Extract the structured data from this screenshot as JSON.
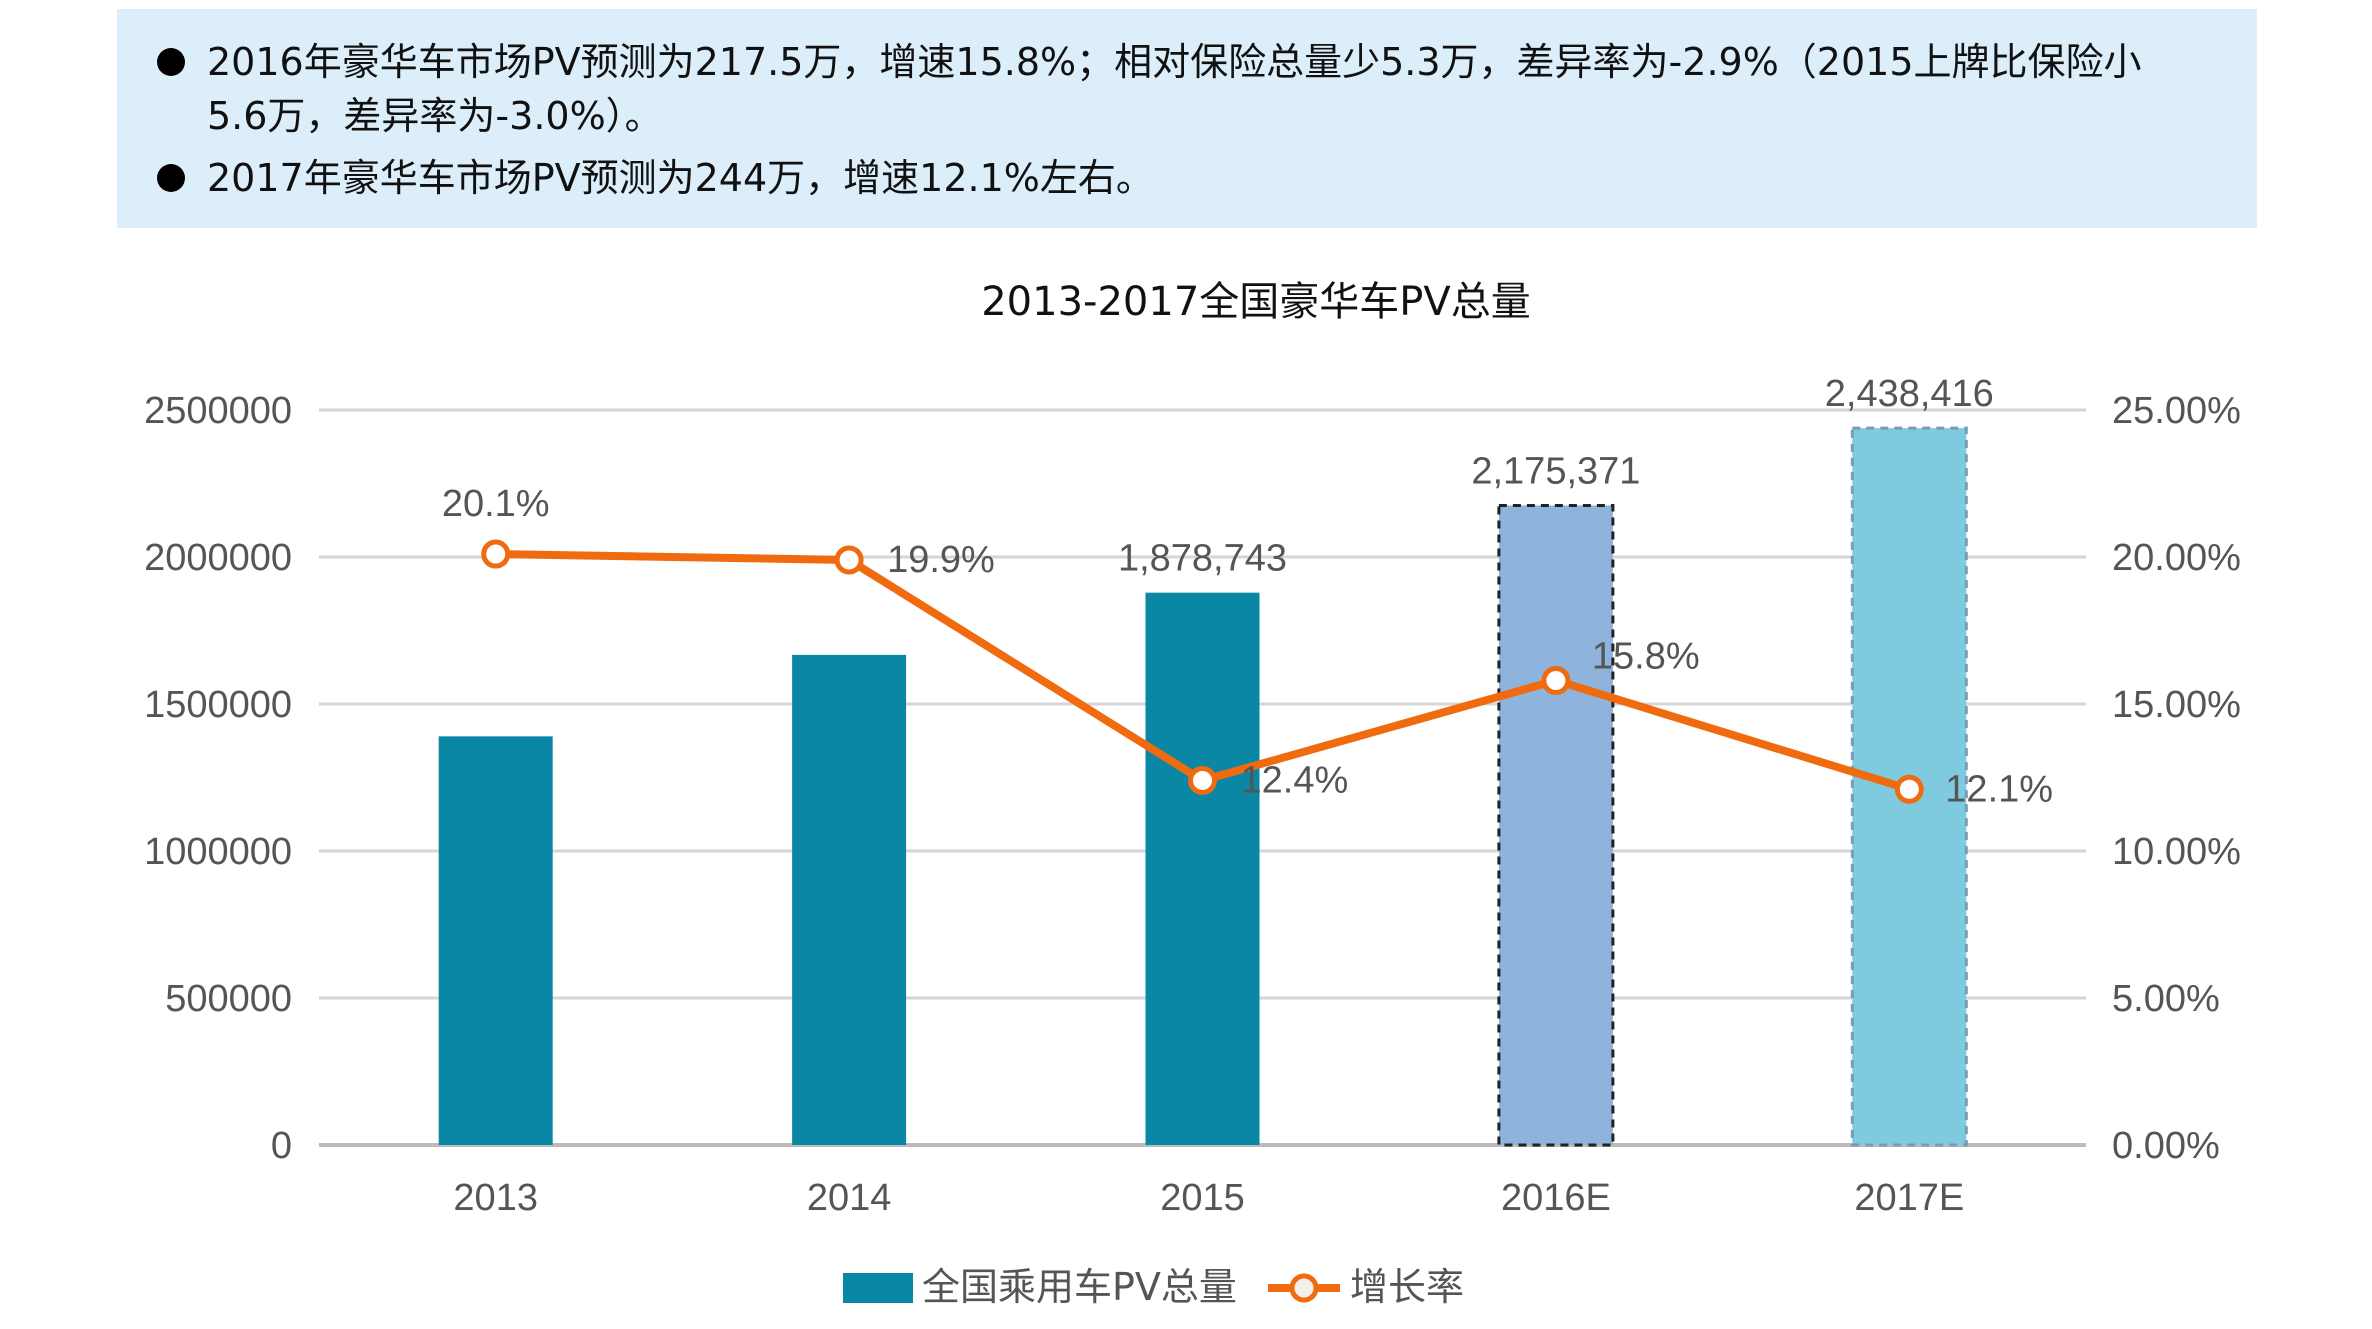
{
  "notes": [
    "2016年豪华车市场PV预测为217.5万，增速15.8%；相对保险总量少5.3万，差异率为-2.9%（2015上牌比保险小5.6万，差异率为-3.0%）。",
    "2017年豪华车市场PV预测为244万，增速12.1%左右。"
  ],
  "chart_data": {
    "type": "bar",
    "title": "2013-2017全国豪华车PV总量",
    "categories": [
      "2013",
      "2014",
      "2015",
      "2016E",
      "2017E"
    ],
    "series": [
      {
        "name": "全国乘用车PV总量",
        "type": "bar",
        "axis": "left",
        "values": [
          1390000,
          1667000,
          1878743,
          2175371,
          2438416
        ],
        "labels": [
          "",
          "",
          "1,878,743",
          "2,175,371",
          "2,438,416"
        ],
        "colors": [
          "#0a87a5",
          "#0a87a5",
          "#0a87a5",
          "#8eb3dc",
          "#7ecbe0"
        ],
        "forecast": [
          false,
          false,
          false,
          true,
          true
        ]
      },
      {
        "name": "增长率",
        "type": "line",
        "axis": "right",
        "values": [
          20.1,
          19.9,
          12.4,
          15.8,
          12.1
        ],
        "labels": [
          "20.1%",
          "19.9%",
          "12.4%",
          "15.8%",
          "12.1%"
        ],
        "color": "#f06a0f"
      }
    ],
    "left_axis": {
      "ylim": [
        0,
        2500000
      ],
      "ticks": [
        "0",
        "500000",
        "1000000",
        "1500000",
        "2000000",
        "2500000"
      ]
    },
    "right_axis": {
      "ylim": [
        0,
        25
      ],
      "ticks": [
        "0.00%",
        "5.00%",
        "10.00%",
        "15.00%",
        "20.00%",
        "25.00%"
      ]
    },
    "grid": true,
    "legend": "bottom"
  }
}
